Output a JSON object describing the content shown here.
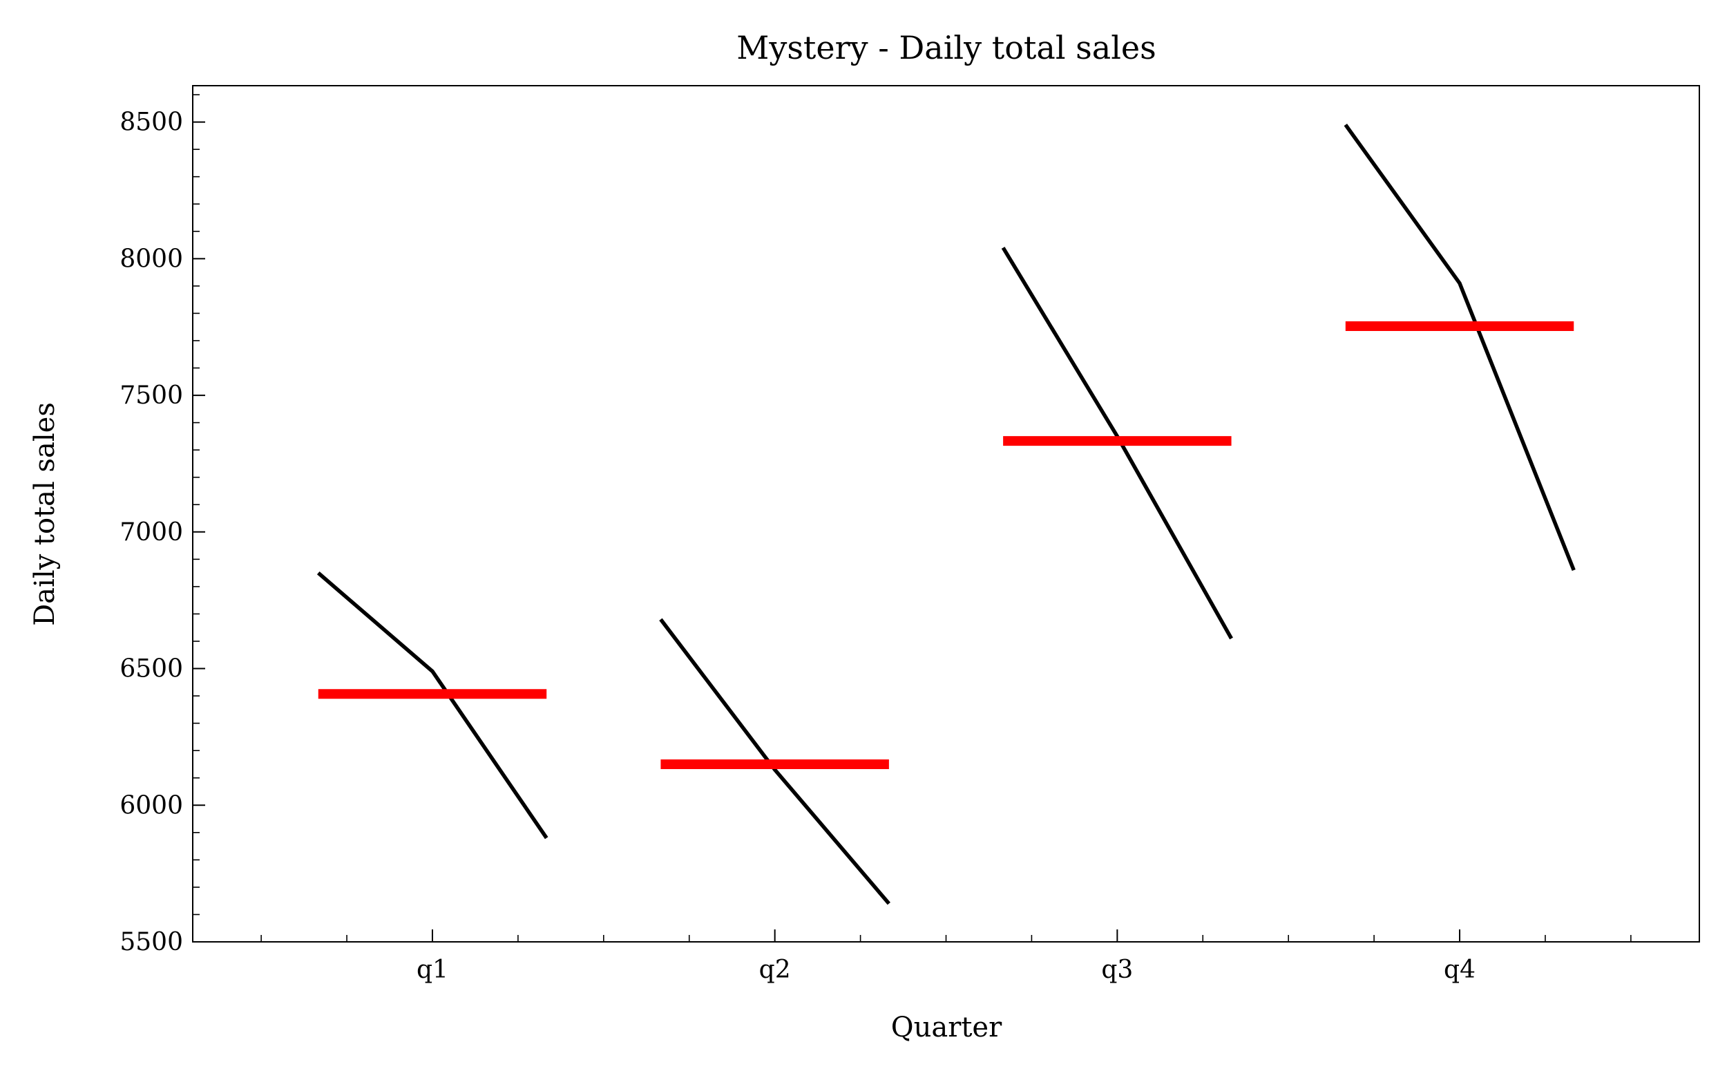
{
  "chart_data": {
    "type": "quarter_plot",
    "title": "Mystery - Daily total sales",
    "xlabel": "Quarter",
    "ylabel": "Daily total sales",
    "categories": [
      "q1",
      "q2",
      "q3",
      "q4"
    ],
    "groups": [
      {
        "values": [
          6850,
          6490,
          5880
        ],
        "mean": 6407
      },
      {
        "values": [
          6680,
          6130,
          5640
        ],
        "mean": 6150
      },
      {
        "values": [
          8040,
          7350,
          6610
        ],
        "mean": 7333
      },
      {
        "values": [
          8490,
          7910,
          6860
        ],
        "mean": 7753
      }
    ],
    "line_color": "#000000",
    "mean_color": "#ff0000",
    "xlim": [
      -0.7,
      3.7
    ],
    "xminorticks": [
      -0.5,
      -0.25,
      0.25,
      0.5,
      0.75,
      1.25,
      1.5,
      1.75,
      2.25,
      2.5,
      2.75,
      3.25,
      3.5
    ],
    "ylim": [
      5500,
      8633
    ],
    "yticks": [
      5500,
      6000,
      6500,
      7000,
      7500,
      8000,
      8500
    ],
    "yminorticks": [
      5600,
      5700,
      5800,
      5900,
      6100,
      6200,
      6300,
      6400,
      6600,
      6700,
      6800,
      6900,
      7100,
      7200,
      7300,
      7400,
      7600,
      7700,
      7800,
      7900,
      8100,
      8200,
      8300,
      8400,
      8600
    ]
  }
}
